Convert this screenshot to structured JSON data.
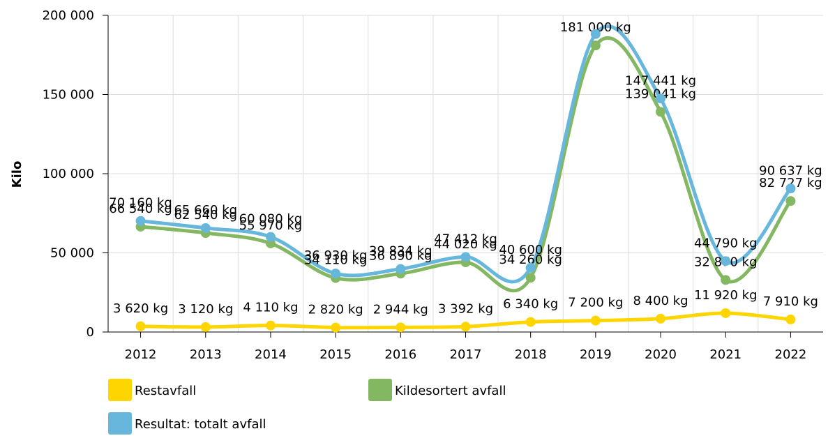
{
  "chart_data": {
    "type": "line",
    "y_label": "Kilo",
    "categories": [
      "2012",
      "2013",
      "2014",
      "2015",
      "2016",
      "2017",
      "2018",
      "2019",
      "2020",
      "2021",
      "2022"
    ],
    "series": [
      {
        "name": "Restavfall",
        "color": "#ffd500",
        "values": [
          3620,
          3120,
          4110,
          2820,
          2944,
          3392,
          6340,
          7200,
          8400,
          11920,
          7910
        ],
        "value_labels": [
          "3 620 kg",
          "3 120 kg",
          "4 110 kg",
          "2 820 kg",
          "2 944 kg",
          "3 392 kg",
          "6 340 kg",
          "7 200 kg",
          "8 400 kg",
          "11 920 kg",
          "7 910 kg"
        ]
      },
      {
        "name": "Kildesortert avfall",
        "color": "#84b761",
        "values": [
          66540,
          62540,
          55970,
          34110,
          36890,
          44020,
          34260,
          181000,
          139041,
          32870,
          82727
        ],
        "value_labels": [
          "66 540 kg",
          "62 540 kg",
          "55 970 kg",
          "34 110 kg",
          "36 890 kg",
          "44 020 kg",
          "34 260 kg",
          "181 000 kg",
          "139 041 kg",
          "32 870 kg",
          "82 727 kg"
        ]
      },
      {
        "name": "Resultat: totalt avfall",
        "color": "#67b7dc",
        "values": [
          70160,
          65660,
          60080,
          36930,
          39834,
          47412,
          40600,
          188200,
          147441,
          44790,
          90637
        ],
        "value_labels": [
          "70 160 kg",
          "65 660 kg",
          "60 080 kg",
          "36 930 kg",
          "39 834 kg",
          "47 412 kg",
          "40 600 kg",
          null,
          "147 441 kg",
          "44 790 kg",
          "90 637 kg"
        ]
      }
    ],
    "ylim": [
      0,
      200000
    ],
    "yticks": [
      0,
      {
        "value": 50000,
        "label": "50 000"
      },
      {
        "value": 100000,
        "label": "100 000"
      },
      {
        "value": 150000,
        "label": "150 000"
      },
      {
        "value": 200000,
        "label": "200 000"
      }
    ],
    "grid": true
  }
}
